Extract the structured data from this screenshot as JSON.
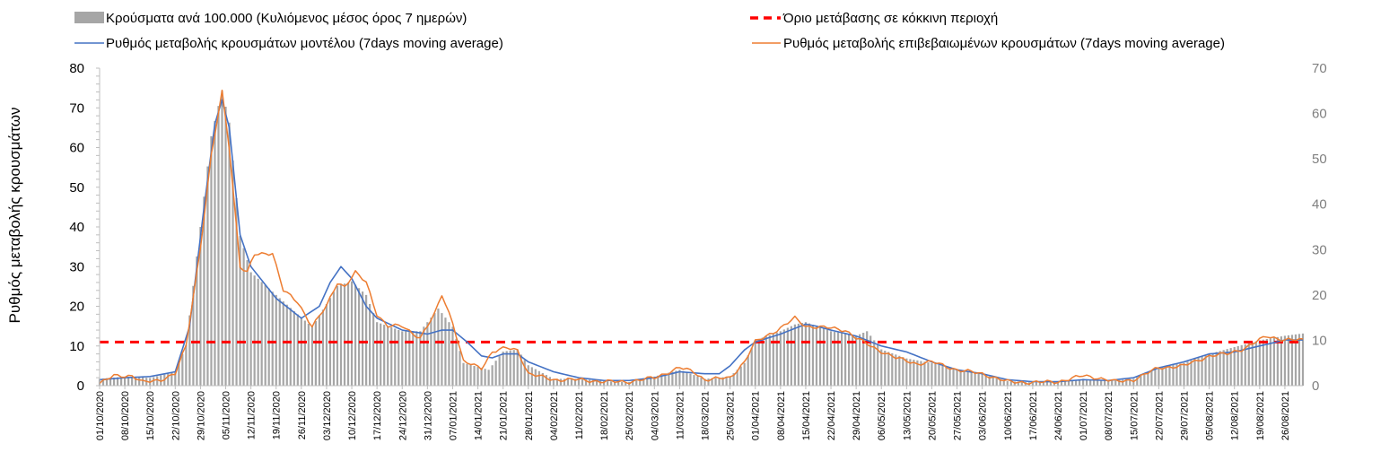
{
  "chart_data": {
    "type": "bar+line",
    "ylabel": "Ρυθμός μεταβολής κρουσμάτων",
    "y_left": {
      "min": 0,
      "max": 80,
      "ticks": [
        0,
        10,
        20,
        30,
        40,
        50,
        60,
        70,
        80
      ]
    },
    "y_right": {
      "min": 0,
      "max": 70,
      "ticks": [
        0,
        10,
        20,
        30,
        40,
        50,
        60,
        70
      ]
    },
    "x_start": "2020-10-01",
    "x_end": "2021-08-31",
    "x_tick_labels": [
      "01/10/2020",
      "08/10/2020",
      "15/10/2020",
      "22/10/2020",
      "29/10/2020",
      "05/11/2020",
      "12/11/2020",
      "19/11/2020",
      "26/11/2020",
      "03/12/2020",
      "10/12/2020",
      "17/12/2020",
      "24/12/2020",
      "31/12/2020",
      "07/01/2021",
      "14/01/2021",
      "21/01/2021",
      "28/01/2021",
      "04/02/2021",
      "11/02/2021",
      "18/02/2021",
      "25/02/2021",
      "04/03/2021",
      "11/03/2021",
      "18/03/2021",
      "25/03/2021",
      "01/04/2021",
      "08/04/2021",
      "15/04/2021",
      "22/04/2021",
      "29/04/2021",
      "06/05/2021",
      "13/05/2021",
      "20/05/2021",
      "27/05/2021",
      "03/06/2021",
      "10/06/2021",
      "17/06/2021",
      "24/06/2021",
      "01/07/2021",
      "08/07/2021",
      "15/07/2021",
      "22/07/2021",
      "29/07/2021",
      "05/08/2021",
      "12/08/2021",
      "19/08/2021",
      "26/08/2021"
    ],
    "legend": [
      {
        "name": "Κρούσματα ανά 100.000 (Κυλιόμενος μέσος όρος 7 ημερών)",
        "marker": "bar",
        "color": "#a6a6a6"
      },
      {
        "name": "Όριο μετάβασης σε κόκκινη περιοχή",
        "marker": "dashed-line",
        "color": "#ff0000"
      },
      {
        "name": "Ρυθμός μεταβολής κρουσμάτων μοντέλου (7days moving average)",
        "marker": "line",
        "color": "#4472c4"
      },
      {
        "name": "Ρυθμός μεταβολής επιβεβαιωμένων κρουσμάτων (7days moving average)",
        "marker": "line",
        "color": "#ed7d31"
      }
    ],
    "threshold": {
      "axis": "left",
      "value": 11,
      "color": "#ff0000"
    },
    "bars_axis": "right",
    "bars_color": "#a6a6a6",
    "bars_keypoints": [
      {
        "date": "2020-10-01",
        "value": 1.5
      },
      {
        "date": "2020-10-08",
        "value": 2.0
      },
      {
        "date": "2020-10-15",
        "value": 1.7
      },
      {
        "date": "2020-10-22",
        "value": 3.0
      },
      {
        "date": "2020-10-25",
        "value": 9.0
      },
      {
        "date": "2020-10-29",
        "value": 35.0
      },
      {
        "date": "2020-11-01",
        "value": 55.0
      },
      {
        "date": "2020-11-04",
        "value": 65.0
      },
      {
        "date": "2020-11-06",
        "value": 58.0
      },
      {
        "date": "2020-11-09",
        "value": 33.0
      },
      {
        "date": "2020-11-12",
        "value": 25.0
      },
      {
        "date": "2020-11-19",
        "value": 20.0
      },
      {
        "date": "2020-11-26",
        "value": 15.0
      },
      {
        "date": "2020-11-29",
        "value": 13.0
      },
      {
        "date": "2020-12-03",
        "value": 18.0
      },
      {
        "date": "2020-12-06",
        "value": 22.0
      },
      {
        "date": "2020-12-10",
        "value": 23.0
      },
      {
        "date": "2020-12-14",
        "value": 20.0
      },
      {
        "date": "2020-12-17",
        "value": 14.0
      },
      {
        "date": "2020-12-24",
        "value": 12.0
      },
      {
        "date": "2020-12-29",
        "value": 12.0
      },
      {
        "date": "2021-01-03",
        "value": 17.0
      },
      {
        "date": "2021-01-07",
        "value": 13.0
      },
      {
        "date": "2021-01-10",
        "value": 5.0
      },
      {
        "date": "2021-01-17",
        "value": 3.5
      },
      {
        "date": "2021-01-21",
        "value": 7.5
      },
      {
        "date": "2021-01-25",
        "value": 8.0
      },
      {
        "date": "2021-01-28",
        "value": 4.5
      },
      {
        "date": "2021-02-04",
        "value": 1.5
      },
      {
        "date": "2021-02-11",
        "value": 1.5
      },
      {
        "date": "2021-02-18",
        "value": 1.0
      },
      {
        "date": "2021-02-25",
        "value": 0.8
      },
      {
        "date": "2021-03-04",
        "value": 2.0
      },
      {
        "date": "2021-03-11",
        "value": 3.5
      },
      {
        "date": "2021-03-18",
        "value": 1.5
      },
      {
        "date": "2021-03-25",
        "value": 2.0
      },
      {
        "date": "2021-03-29",
        "value": 5.0
      },
      {
        "date": "2021-04-01",
        "value": 10.0
      },
      {
        "date": "2021-04-08",
        "value": 12.0
      },
      {
        "date": "2021-04-12",
        "value": 13.5
      },
      {
        "date": "2021-04-15",
        "value": 14.0
      },
      {
        "date": "2021-04-22",
        "value": 12.0
      },
      {
        "date": "2021-04-29",
        "value": 11.0
      },
      {
        "date": "2021-05-02",
        "value": 12.0
      },
      {
        "date": "2021-05-06",
        "value": 8.0
      },
      {
        "date": "2021-05-13",
        "value": 6.0
      },
      {
        "date": "2021-05-20",
        "value": 5.0
      },
      {
        "date": "2021-05-27",
        "value": 3.5
      },
      {
        "date": "2021-06-03",
        "value": 2.5
      },
      {
        "date": "2021-06-10",
        "value": 1.0
      },
      {
        "date": "2021-06-17",
        "value": 0.7
      },
      {
        "date": "2021-06-24",
        "value": 0.8
      },
      {
        "date": "2021-07-01",
        "value": 1.5
      },
      {
        "date": "2021-07-08",
        "value": 1.0
      },
      {
        "date": "2021-07-15",
        "value": 1.5
      },
      {
        "date": "2021-07-22",
        "value": 4.0
      },
      {
        "date": "2021-07-29",
        "value": 5.0
      },
      {
        "date": "2021-08-05",
        "value": 7.0
      },
      {
        "date": "2021-08-12",
        "value": 8.5
      },
      {
        "date": "2021-08-19",
        "value": 10.0
      },
      {
        "date": "2021-08-26",
        "value": 11.0
      },
      {
        "date": "2021-08-31",
        "value": 11.5
      }
    ],
    "series": [
      {
        "name": "Ρυθμός μεταβολής κρουσμάτων μοντέλου (7days moving average)",
        "axis": "left",
        "color": "#4472c4",
        "points": [
          {
            "date": "2020-10-01",
            "value": 1.5
          },
          {
            "date": "2020-10-08",
            "value": 2.0
          },
          {
            "date": "2020-10-15",
            "value": 2.3
          },
          {
            "date": "2020-10-22",
            "value": 3.5
          },
          {
            "date": "2020-10-26",
            "value": 15.0
          },
          {
            "date": "2020-10-30",
            "value": 45.0
          },
          {
            "date": "2020-11-02",
            "value": 66.0
          },
          {
            "date": "2020-11-04",
            "value": 72.0
          },
          {
            "date": "2020-11-06",
            "value": 65.0
          },
          {
            "date": "2020-11-09",
            "value": 38.0
          },
          {
            "date": "2020-11-12",
            "value": 30.0
          },
          {
            "date": "2020-11-19",
            "value": 22.0
          },
          {
            "date": "2020-11-26",
            "value": 17.0
          },
          {
            "date": "2020-12-01",
            "value": 20.0
          },
          {
            "date": "2020-12-04",
            "value": 26.0
          },
          {
            "date": "2020-12-07",
            "value": 30.0
          },
          {
            "date": "2020-12-10",
            "value": 27.0
          },
          {
            "date": "2020-12-14",
            "value": 20.0
          },
          {
            "date": "2020-12-17",
            "value": 17.0
          },
          {
            "date": "2020-12-24",
            "value": 14.0
          },
          {
            "date": "2020-12-31",
            "value": 13.0
          },
          {
            "date": "2021-01-04",
            "value": 14.0
          },
          {
            "date": "2021-01-07",
            "value": 14.0
          },
          {
            "date": "2021-01-11",
            "value": 11.0
          },
          {
            "date": "2021-01-15",
            "value": 7.5
          },
          {
            "date": "2021-01-18",
            "value": 7.0
          },
          {
            "date": "2021-01-21",
            "value": 8.0
          },
          {
            "date": "2021-01-25",
            "value": 8.0
          },
          {
            "date": "2021-01-28",
            "value": 6.0
          },
          {
            "date": "2021-02-04",
            "value": 3.5
          },
          {
            "date": "2021-02-11",
            "value": 2.0
          },
          {
            "date": "2021-02-18",
            "value": 1.3
          },
          {
            "date": "2021-02-25",
            "value": 1.3
          },
          {
            "date": "2021-03-04",
            "value": 2.0
          },
          {
            "date": "2021-03-11",
            "value": 3.5
          },
          {
            "date": "2021-03-18",
            "value": 3.0
          },
          {
            "date": "2021-03-22",
            "value": 3.0
          },
          {
            "date": "2021-03-25",
            "value": 5.0
          },
          {
            "date": "2021-03-29",
            "value": 9.0
          },
          {
            "date": "2021-04-01",
            "value": 11.0
          },
          {
            "date": "2021-04-08",
            "value": 13.0
          },
          {
            "date": "2021-04-15",
            "value": 15.5
          },
          {
            "date": "2021-04-18",
            "value": 15.0
          },
          {
            "date": "2021-04-22",
            "value": 14.0
          },
          {
            "date": "2021-04-29",
            "value": 12.5
          },
          {
            "date": "2021-05-06",
            "value": 10.0
          },
          {
            "date": "2021-05-13",
            "value": 8.5
          },
          {
            "date": "2021-05-20",
            "value": 6.0
          },
          {
            "date": "2021-05-27",
            "value": 4.0
          },
          {
            "date": "2021-06-03",
            "value": 3.0
          },
          {
            "date": "2021-06-10",
            "value": 1.5
          },
          {
            "date": "2021-06-17",
            "value": 1.0
          },
          {
            "date": "2021-06-24",
            "value": 1.0
          },
          {
            "date": "2021-07-01",
            "value": 1.5
          },
          {
            "date": "2021-07-08",
            "value": 1.3
          },
          {
            "date": "2021-07-15",
            "value": 2.0
          },
          {
            "date": "2021-07-22",
            "value": 4.5
          },
          {
            "date": "2021-07-29",
            "value": 6.0
          },
          {
            "date": "2021-08-05",
            "value": 8.0
          },
          {
            "date": "2021-08-12",
            "value": 8.5
          },
          {
            "date": "2021-08-19",
            "value": 10.0
          },
          {
            "date": "2021-08-26",
            "value": 11.5
          },
          {
            "date": "2021-08-31",
            "value": 11.5
          }
        ]
      },
      {
        "name": "Ρυθμός μεταβολής επιβεβαιωμένων κρουσμάτων (7days moving average)",
        "axis": "left",
        "color": "#ed7d31",
        "points": [
          {
            "date": "2020-10-01",
            "value": 0.5
          },
          {
            "date": "2020-10-05",
            "value": 2.5
          },
          {
            "date": "2020-10-10",
            "value": 2.5
          },
          {
            "date": "2020-10-13",
            "value": 0.8
          },
          {
            "date": "2020-10-18",
            "value": 1.5
          },
          {
            "date": "2020-10-22",
            "value": 3.0
          },
          {
            "date": "2020-10-25",
            "value": 10.0
          },
          {
            "date": "2020-10-29",
            "value": 35.0
          },
          {
            "date": "2020-11-01",
            "value": 58.0
          },
          {
            "date": "2020-11-04",
            "value": 74.0
          },
          {
            "date": "2020-11-06",
            "value": 60.0
          },
          {
            "date": "2020-11-09",
            "value": 30.0
          },
          {
            "date": "2020-11-11",
            "value": 28.5
          },
          {
            "date": "2020-11-13",
            "value": 33.0
          },
          {
            "date": "2020-11-18",
            "value": 33.5
          },
          {
            "date": "2020-11-21",
            "value": 24.0
          },
          {
            "date": "2020-11-25",
            "value": 21.0
          },
          {
            "date": "2020-11-29",
            "value": 15.0
          },
          {
            "date": "2020-12-03",
            "value": 20.0
          },
          {
            "date": "2020-12-06",
            "value": 26.0
          },
          {
            "date": "2020-12-08",
            "value": 25.0
          },
          {
            "date": "2020-12-11",
            "value": 28.5
          },
          {
            "date": "2020-12-14",
            "value": 26.0
          },
          {
            "date": "2020-12-17",
            "value": 18.0
          },
          {
            "date": "2020-12-20",
            "value": 15.0
          },
          {
            "date": "2020-12-24",
            "value": 15.0
          },
          {
            "date": "2020-12-29",
            "value": 12.0
          },
          {
            "date": "2021-01-02",
            "value": 18.0
          },
          {
            "date": "2021-01-04",
            "value": 23.0
          },
          {
            "date": "2021-01-07",
            "value": 16.0
          },
          {
            "date": "2021-01-10",
            "value": 6.0
          },
          {
            "date": "2021-01-15",
            "value": 4.5
          },
          {
            "date": "2021-01-18",
            "value": 8.5
          },
          {
            "date": "2021-01-22",
            "value": 9.5
          },
          {
            "date": "2021-01-25",
            "value": 9.0
          },
          {
            "date": "2021-01-28",
            "value": 3.0
          },
          {
            "date": "2021-02-04",
            "value": 1.5
          },
          {
            "date": "2021-02-11",
            "value": 1.5
          },
          {
            "date": "2021-02-18",
            "value": 1.0
          },
          {
            "date": "2021-02-25",
            "value": 1.0
          },
          {
            "date": "2021-03-04",
            "value": 2.0
          },
          {
            "date": "2021-03-11",
            "value": 4.5
          },
          {
            "date": "2021-03-15",
            "value": 3.5
          },
          {
            "date": "2021-03-18",
            "value": 1.5
          },
          {
            "date": "2021-03-25",
            "value": 2.0
          },
          {
            "date": "2021-03-29",
            "value": 6.0
          },
          {
            "date": "2021-04-01",
            "value": 11.0
          },
          {
            "date": "2021-04-08",
            "value": 14.5
          },
          {
            "date": "2021-04-12",
            "value": 17.0
          },
          {
            "date": "2021-04-15",
            "value": 15.0
          },
          {
            "date": "2021-04-22",
            "value": 14.5
          },
          {
            "date": "2021-04-26",
            "value": 14.0
          },
          {
            "date": "2021-04-29",
            "value": 12.0
          },
          {
            "date": "2021-05-04",
            "value": 9.5
          },
          {
            "date": "2021-05-10",
            "value": 7.0
          },
          {
            "date": "2021-05-16",
            "value": 5.5
          },
          {
            "date": "2021-05-20",
            "value": 6.0
          },
          {
            "date": "2021-05-27",
            "value": 4.0
          },
          {
            "date": "2021-06-03",
            "value": 3.0
          },
          {
            "date": "2021-06-10",
            "value": 1.0
          },
          {
            "date": "2021-06-17",
            "value": 0.8
          },
          {
            "date": "2021-06-24",
            "value": 1.0
          },
          {
            "date": "2021-07-01",
            "value": 2.5
          },
          {
            "date": "2021-07-05",
            "value": 2.0
          },
          {
            "date": "2021-07-10",
            "value": 1.0
          },
          {
            "date": "2021-07-15",
            "value": 1.5
          },
          {
            "date": "2021-07-22",
            "value": 4.5
          },
          {
            "date": "2021-07-29",
            "value": 5.0
          },
          {
            "date": "2021-08-05",
            "value": 7.5
          },
          {
            "date": "2021-08-10",
            "value": 8.0
          },
          {
            "date": "2021-08-15",
            "value": 9.5
          },
          {
            "date": "2021-08-21",
            "value": 12.5
          },
          {
            "date": "2021-08-26",
            "value": 11.5
          },
          {
            "date": "2021-08-31",
            "value": 11.5
          }
        ]
      }
    ]
  }
}
